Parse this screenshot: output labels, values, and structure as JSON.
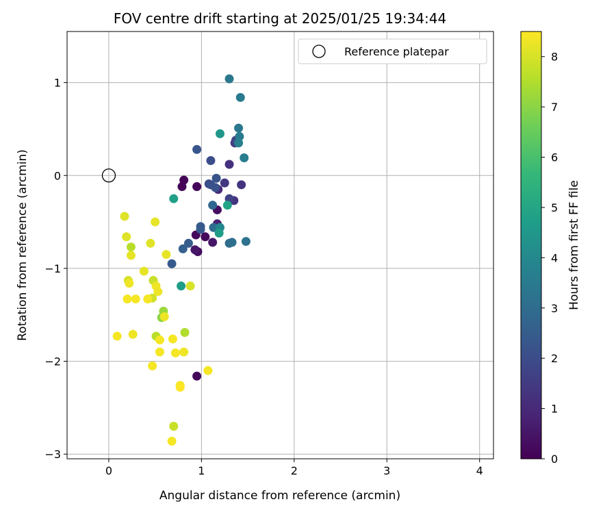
{
  "chart_data": {
    "type": "scatter",
    "title": "FOV centre drift starting at 2025/01/25 19:34:44",
    "xlabel": "Angular distance from reference (arcmin)",
    "ylabel": "Rotation from reference (arcmin)",
    "xlim": [
      -0.45,
      4.15
    ],
    "ylim": [
      -3.05,
      1.55
    ],
    "x_ticks": [
      0,
      1,
      2,
      3,
      4
    ],
    "y_ticks": [
      -3,
      -2,
      -1,
      0,
      1
    ],
    "x_tick_labels": [
      "0",
      "1",
      "2",
      "3",
      "4"
    ],
    "y_tick_labels": [
      "−3",
      "−2",
      "−1",
      "0",
      "1"
    ],
    "grid": true,
    "legend": {
      "position": "top-right",
      "entries": [
        "Reference platepar"
      ]
    },
    "reference_point": {
      "x": 0,
      "y": 0,
      "label": "Reference platepar"
    },
    "colorbar": {
      "label": "Hours from first FF file",
      "range": [
        0,
        8.5
      ],
      "ticks": [
        0,
        1,
        2,
        3,
        4,
        5,
        6,
        7,
        8
      ],
      "tick_labels": [
        "0",
        "1",
        "2",
        "3",
        "4",
        "5",
        "6",
        "7",
        "8"
      ],
      "colormap": "viridis",
      "stops": [
        "#440154",
        "#482878",
        "#3e4989",
        "#31688e",
        "#26828e",
        "#1f9e89",
        "#35b779",
        "#6ece58",
        "#b5de2b",
        "#fde725"
      ]
    },
    "points": [
      {
        "x": 0.81,
        "y": -0.05,
        "hours": 0.1
      },
      {
        "x": 0.79,
        "y": -0.12,
        "hours": 0.1
      },
      {
        "x": 0.95,
        "y": -0.12,
        "hours": 0.1
      },
      {
        "x": 0.94,
        "y": -0.64,
        "hours": 0.2
      },
      {
        "x": 1.04,
        "y": -0.66,
        "hours": 0.2
      },
      {
        "x": 0.96,
        "y": -0.82,
        "hours": 0.3
      },
      {
        "x": 0.93,
        "y": -0.8,
        "hours": 0.5
      },
      {
        "x": 1.12,
        "y": -0.72,
        "hours": 0.5
      },
      {
        "x": 1.17,
        "y": -0.37,
        "hours": 0.3
      },
      {
        "x": 0.95,
        "y": -2.16,
        "hours": 0.2
      },
      {
        "x": 1.17,
        "y": -0.52,
        "hours": 0.8
      },
      {
        "x": 1.18,
        "y": -0.15,
        "hours": 1.0
      },
      {
        "x": 1.3,
        "y": 0.12,
        "hours": 1.2
      },
      {
        "x": 1.35,
        "y": -0.27,
        "hours": 1.3
      },
      {
        "x": 1.43,
        "y": -0.1,
        "hours": 1.3
      },
      {
        "x": 1.25,
        "y": -0.08,
        "hours": 1.4
      },
      {
        "x": 1.36,
        "y": 0.35,
        "hours": 1.5
      },
      {
        "x": 1.3,
        "y": -0.25,
        "hours": 1.7
      },
      {
        "x": 1.37,
        "y": 0.38,
        "hours": 1.8
      },
      {
        "x": 1.1,
        "y": 0.16,
        "hours": 2.0
      },
      {
        "x": 1.08,
        "y": -0.09,
        "hours": 2.0
      },
      {
        "x": 1.1,
        "y": -0.1,
        "hours": 2.1
      },
      {
        "x": 1.15,
        "y": -0.13,
        "hours": 2.2
      },
      {
        "x": 1.16,
        "y": -0.03,
        "hours": 2.2
      },
      {
        "x": 0.95,
        "y": 0.28,
        "hours": 2.3
      },
      {
        "x": 0.99,
        "y": -0.55,
        "hours": 2.4
      },
      {
        "x": 0.99,
        "y": -0.58,
        "hours": 2.4
      },
      {
        "x": 0.86,
        "y": -0.73,
        "hours": 2.5
      },
      {
        "x": 0.8,
        "y": -0.79,
        "hours": 2.6
      },
      {
        "x": 0.68,
        "y": -0.95,
        "hours": 2.4
      },
      {
        "x": 1.12,
        "y": -0.32,
        "hours": 2.8
      },
      {
        "x": 1.13,
        "y": -0.56,
        "hours": 3.0
      },
      {
        "x": 1.3,
        "y": -0.73,
        "hours": 3.0
      },
      {
        "x": 1.33,
        "y": -0.72,
        "hours": 3.1
      },
      {
        "x": 1.48,
        "y": -0.71,
        "hours": 3.2
      },
      {
        "x": 1.4,
        "y": 0.51,
        "hours": 3.4
      },
      {
        "x": 1.41,
        "y": 0.42,
        "hours": 3.5
      },
      {
        "x": 1.46,
        "y": 0.19,
        "hours": 3.6
      },
      {
        "x": 1.4,
        "y": 0.35,
        "hours": 3.7
      },
      {
        "x": 1.42,
        "y": 0.84,
        "hours": 3.5
      },
      {
        "x": 1.3,
        "y": 1.04,
        "hours": 3.4
      },
      {
        "x": 1.2,
        "y": -0.56,
        "hours": 3.9
      },
      {
        "x": 1.2,
        "y": 0.45,
        "hours": 4.5
      },
      {
        "x": 1.19,
        "y": -0.62,
        "hours": 4.7
      },
      {
        "x": 1.28,
        "y": -0.32,
        "hours": 4.9
      },
      {
        "x": 0.7,
        "y": -0.25,
        "hours": 4.8
      },
      {
        "x": 0.78,
        "y": -1.19,
        "hours": 4.7
      },
      {
        "x": 0.59,
        "y": -1.46,
        "hours": 7.2
      },
      {
        "x": 0.57,
        "y": -1.53,
        "hours": 7.0
      },
      {
        "x": 0.82,
        "y": -1.69,
        "hours": 7.5
      },
      {
        "x": 0.51,
        "y": -1.73,
        "hours": 7.6
      },
      {
        "x": 0.24,
        "y": -0.77,
        "hours": 7.6
      },
      {
        "x": 0.48,
        "y": -1.13,
        "hours": 7.8
      },
      {
        "x": 0.47,
        "y": -1.32,
        "hours": 7.9
      },
      {
        "x": 0.21,
        "y": -1.13,
        "hours": 8.0
      },
      {
        "x": 0.7,
        "y": -2.7,
        "hours": 7.8
      },
      {
        "x": 0.17,
        "y": -0.44,
        "hours": 8.1
      },
      {
        "x": 0.19,
        "y": -0.66,
        "hours": 8.1
      },
      {
        "x": 0.24,
        "y": -0.86,
        "hours": 8.2
      },
      {
        "x": 0.45,
        "y": -0.73,
        "hours": 8.1
      },
      {
        "x": 0.5,
        "y": -0.5,
        "hours": 8.2
      },
      {
        "x": 0.62,
        "y": -0.85,
        "hours": 8.2
      },
      {
        "x": 0.38,
        "y": -1.03,
        "hours": 8.2
      },
      {
        "x": 0.51,
        "y": -1.19,
        "hours": 8.3
      },
      {
        "x": 0.53,
        "y": -1.25,
        "hours": 8.3
      },
      {
        "x": 0.22,
        "y": -1.16,
        "hours": 8.3
      },
      {
        "x": 0.2,
        "y": -1.33,
        "hours": 8.4
      },
      {
        "x": 0.29,
        "y": -1.33,
        "hours": 8.4
      },
      {
        "x": 0.42,
        "y": -1.33,
        "hours": 8.4
      },
      {
        "x": 0.6,
        "y": -1.52,
        "hours": 8.3
      },
      {
        "x": 0.88,
        "y": -1.19,
        "hours": 8.0
      },
      {
        "x": 0.09,
        "y": -1.73,
        "hours": 8.4
      },
      {
        "x": 0.26,
        "y": -1.71,
        "hours": 8.3
      },
      {
        "x": 0.55,
        "y": -1.77,
        "hours": 8.4
      },
      {
        "x": 0.69,
        "y": -1.76,
        "hours": 8.4
      },
      {
        "x": 0.55,
        "y": -1.9,
        "hours": 8.4
      },
      {
        "x": 0.72,
        "y": -1.91,
        "hours": 8.4
      },
      {
        "x": 0.81,
        "y": -1.9,
        "hours": 8.3
      },
      {
        "x": 0.47,
        "y": -2.05,
        "hours": 8.4
      },
      {
        "x": 1.07,
        "y": -2.1,
        "hours": 8.4
      },
      {
        "x": 0.77,
        "y": -2.26,
        "hours": 8.4
      },
      {
        "x": 0.77,
        "y": -2.28,
        "hours": 8.5
      },
      {
        "x": 0.68,
        "y": -2.86,
        "hours": 8.4
      }
    ]
  }
}
